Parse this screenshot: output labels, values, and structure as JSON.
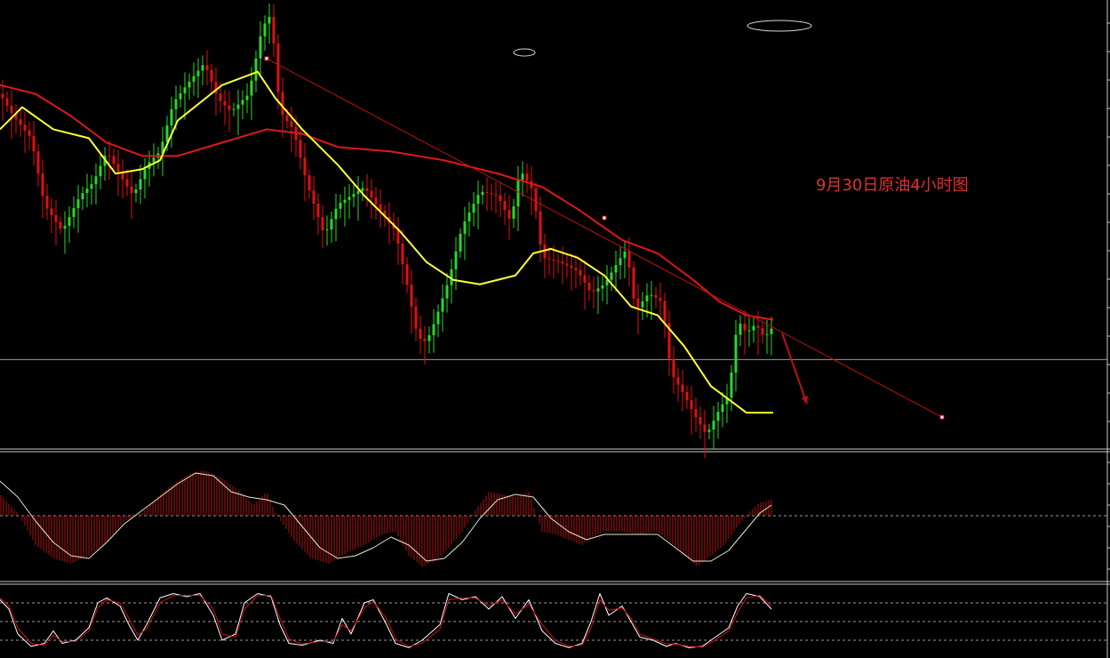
{
  "annotation": "9月30日原油4小时图",
  "colors": {
    "background": "#000000",
    "bull": "#26d926",
    "bear": "#e01010",
    "ma_fast": "#ffff33",
    "ma_slow": "#e01818",
    "trendline": "#c01010",
    "hline": "#9a9a9a",
    "macd_hist": "#b01010",
    "macd_signal": "#e6e6c8",
    "osc_main": "#ffffff",
    "osc_signal": "#d01010",
    "divider": "#c8c8c8",
    "dashed": "#9a9a9a"
  },
  "chart_data": [
    {
      "type": "candlestick",
      "panel": "price",
      "ylim": [
        0,
        100
      ],
      "ma_fast_points": [
        [
          0,
          72
        ],
        [
          25,
          77
        ],
        [
          60,
          72
        ],
        [
          100,
          70
        ],
        [
          130,
          62
        ],
        [
          160,
          63
        ],
        [
          180,
          65
        ],
        [
          200,
          74
        ],
        [
          250,
          82
        ],
        [
          290,
          85
        ],
        [
          310,
          79
        ],
        [
          340,
          72
        ],
        [
          380,
          64
        ],
        [
          410,
          57
        ],
        [
          450,
          49
        ],
        [
          480,
          42
        ],
        [
          510,
          38
        ],
        [
          540,
          37
        ],
        [
          580,
          39
        ],
        [
          600,
          44
        ],
        [
          620,
          45
        ],
        [
          650,
          43
        ],
        [
          680,
          39
        ],
        [
          710,
          32
        ],
        [
          740,
          30
        ],
        [
          770,
          23
        ],
        [
          800,
          14
        ],
        [
          820,
          11
        ],
        [
          840,
          8
        ],
        [
          870,
          8
        ]
      ],
      "ma_slow_points": [
        [
          0,
          82
        ],
        [
          40,
          80
        ],
        [
          80,
          75
        ],
        [
          120,
          69
        ],
        [
          160,
          66
        ],
        [
          200,
          66
        ],
        [
          250,
          69
        ],
        [
          300,
          72
        ],
        [
          340,
          71
        ],
        [
          380,
          68
        ],
        [
          440,
          67
        ],
        [
          500,
          65
        ],
        [
          560,
          62
        ],
        [
          610,
          59
        ],
        [
          650,
          54
        ],
        [
          700,
          47
        ],
        [
          740,
          44
        ],
        [
          780,
          38
        ],
        [
          810,
          33
        ],
        [
          840,
          30
        ],
        [
          870,
          29
        ]
      ],
      "trendline": [
        [
          300,
          88
        ],
        [
          1060,
          7
        ]
      ],
      "trendline_markers": [
        [
          300,
          88
        ],
        [
          680,
          52
        ],
        [
          1060,
          7
        ]
      ],
      "hline_value": 20,
      "arrow": [
        [
          880,
          26
        ],
        [
          908,
          10
        ]
      ],
      "ellipses": [
        {
          "cx": 590,
          "cy": 59,
          "rx": 12,
          "ry": 4
        },
        {
          "cx": 877,
          "cy": 29,
          "rx": 36,
          "ry": 6
        }
      ],
      "price_path": [
        [
          0,
          80
        ],
        [
          15,
          75
        ],
        [
          35,
          70
        ],
        [
          50,
          55
        ],
        [
          70,
          49
        ],
        [
          90,
          57
        ],
        [
          105,
          60
        ],
        [
          120,
          67
        ],
        [
          140,
          60
        ],
        [
          150,
          57
        ],
        [
          165,
          64
        ],
        [
          180,
          67
        ],
        [
          195,
          78
        ],
        [
          210,
          82
        ],
        [
          230,
          87
        ],
        [
          245,
          79
        ],
        [
          260,
          76
        ],
        [
          280,
          80
        ],
        [
          295,
          95
        ],
        [
          305,
          98
        ],
        [
          315,
          76
        ],
        [
          330,
          72
        ],
        [
          345,
          60
        ],
        [
          365,
          48
        ],
        [
          380,
          55
        ],
        [
          395,
          57
        ],
        [
          410,
          59
        ],
        [
          430,
          53
        ],
        [
          445,
          49
        ],
        [
          460,
          35
        ],
        [
          470,
          25
        ],
        [
          480,
          24
        ],
        [
          490,
          29
        ],
        [
          505,
          38
        ],
        [
          520,
          50
        ],
        [
          540,
          58
        ],
        [
          560,
          57
        ],
        [
          575,
          51
        ],
        [
          585,
          63
        ],
        [
          600,
          58
        ],
        [
          610,
          43
        ],
        [
          630,
          42
        ],
        [
          650,
          40
        ],
        [
          665,
          35
        ],
        [
          680,
          37
        ],
        [
          695,
          42
        ],
        [
          705,
          45
        ],
        [
          715,
          31
        ],
        [
          730,
          35
        ],
        [
          745,
          33
        ],
        [
          755,
          17
        ],
        [
          770,
          12
        ],
        [
          780,
          8
        ],
        [
          795,
          3
        ],
        [
          810,
          9
        ],
        [
          820,
          12
        ],
        [
          830,
          29
        ],
        [
          840,
          26
        ],
        [
          850,
          28
        ],
        [
          860,
          25
        ],
        [
          868,
          27
        ]
      ]
    },
    {
      "type": "bar",
      "panel": "macd",
      "ylim": [
        -1,
        1
      ],
      "hist_points": [
        [
          0,
          0.4
        ],
        [
          20,
          0.05
        ],
        [
          40,
          -0.55
        ],
        [
          60,
          -0.8
        ],
        [
          80,
          -0.9
        ],
        [
          100,
          -0.75
        ],
        [
          120,
          -0.5
        ],
        [
          140,
          -0.1
        ],
        [
          160,
          0.05
        ],
        [
          180,
          0.4
        ],
        [
          200,
          0.65
        ],
        [
          215,
          0.8
        ],
        [
          230,
          0.85
        ],
        [
          250,
          0.7
        ],
        [
          270,
          0.45
        ],
        [
          285,
          0.2
        ],
        [
          300,
          0.45
        ],
        [
          310,
          0.05
        ],
        [
          330,
          -0.45
        ],
        [
          350,
          -0.8
        ],
        [
          370,
          -0.9
        ],
        [
          390,
          -0.7
        ],
        [
          410,
          -0.55
        ],
        [
          430,
          -0.35
        ],
        [
          445,
          -0.3
        ],
        [
          460,
          -0.75
        ],
        [
          475,
          -0.95
        ],
        [
          490,
          -0.85
        ],
        [
          505,
          -0.6
        ],
        [
          520,
          -0.3
        ],
        [
          535,
          0.1
        ],
        [
          550,
          0.45
        ],
        [
          565,
          0.4
        ],
        [
          580,
          0.35
        ],
        [
          595,
          0.45
        ],
        [
          610,
          -0.3
        ],
        [
          625,
          -0.35
        ],
        [
          640,
          -0.45
        ],
        [
          655,
          -0.55
        ],
        [
          665,
          -0.4
        ],
        [
          680,
          -0.3
        ],
        [
          700,
          -0.3
        ],
        [
          720,
          -0.35
        ],
        [
          740,
          -0.3
        ],
        [
          755,
          -0.5
        ],
        [
          770,
          -0.75
        ],
        [
          785,
          -0.95
        ],
        [
          800,
          -0.75
        ],
        [
          815,
          -0.55
        ],
        [
          830,
          -0.2
        ],
        [
          845,
          0.1
        ],
        [
          855,
          0.25
        ],
        [
          868,
          0.3
        ]
      ],
      "signal_points": [
        [
          0,
          0.65
        ],
        [
          20,
          0.35
        ],
        [
          40,
          -0.1
        ],
        [
          60,
          -0.5
        ],
        [
          80,
          -0.75
        ],
        [
          100,
          -0.8
        ],
        [
          120,
          -0.5
        ],
        [
          140,
          -0.15
        ],
        [
          160,
          0.1
        ],
        [
          180,
          0.35
        ],
        [
          200,
          0.6
        ],
        [
          220,
          0.8
        ],
        [
          240,
          0.75
        ],
        [
          260,
          0.45
        ],
        [
          280,
          0.35
        ],
        [
          300,
          0.3
        ],
        [
          320,
          0.2
        ],
        [
          340,
          -0.2
        ],
        [
          360,
          -0.6
        ],
        [
          380,
          -0.8
        ],
        [
          400,
          -0.75
        ],
        [
          420,
          -0.6
        ],
        [
          440,
          -0.4
        ],
        [
          460,
          -0.55
        ],
        [
          480,
          -0.85
        ],
        [
          500,
          -0.8
        ],
        [
          520,
          -0.5
        ],
        [
          540,
          -0.05
        ],
        [
          560,
          0.3
        ],
        [
          580,
          0.4
        ],
        [
          600,
          0.35
        ],
        [
          620,
          -0.05
        ],
        [
          640,
          -0.3
        ],
        [
          660,
          -0.45
        ],
        [
          680,
          -0.35
        ],
        [
          700,
          -0.35
        ],
        [
          720,
          -0.35
        ],
        [
          740,
          -0.35
        ],
        [
          760,
          -0.6
        ],
        [
          780,
          -0.85
        ],
        [
          800,
          -0.85
        ],
        [
          820,
          -0.65
        ],
        [
          840,
          -0.25
        ],
        [
          855,
          0.05
        ],
        [
          868,
          0.2
        ]
      ]
    },
    {
      "type": "line",
      "panel": "oscillator",
      "ylim": [
        0,
        100
      ],
      "levels": [
        80,
        50,
        20
      ],
      "main_points": [
        [
          0,
          85
        ],
        [
          10,
          70
        ],
        [
          20,
          30
        ],
        [
          35,
          10
        ],
        [
          50,
          15
        ],
        [
          60,
          35
        ],
        [
          70,
          15
        ],
        [
          85,
          20
        ],
        [
          100,
          40
        ],
        [
          110,
          80
        ],
        [
          120,
          88
        ],
        [
          135,
          75
        ],
        [
          145,
          45
        ],
        [
          155,
          20
        ],
        [
          165,
          45
        ],
        [
          180,
          88
        ],
        [
          195,
          95
        ],
        [
          210,
          90
        ],
        [
          225,
          95
        ],
        [
          240,
          60
        ],
        [
          250,
          20
        ],
        [
          265,
          30
        ],
        [
          275,
          80
        ],
        [
          290,
          95
        ],
        [
          305,
          90
        ],
        [
          315,
          45
        ],
        [
          325,
          15
        ],
        [
          340,
          12
        ],
        [
          360,
          20
        ],
        [
          375,
          15
        ],
        [
          385,
          55
        ],
        [
          395,
          30
        ],
        [
          410,
          80
        ],
        [
          420,
          85
        ],
        [
          435,
          45
        ],
        [
          445,
          15
        ],
        [
          460,
          8
        ],
        [
          475,
          20
        ],
        [
          495,
          45
        ],
        [
          505,
          95
        ],
        [
          520,
          85
        ],
        [
          535,
          90
        ],
        [
          550,
          70
        ],
        [
          565,
          90
        ],
        [
          580,
          55
        ],
        [
          595,
          85
        ],
        [
          610,
          35
        ],
        [
          625,
          15
        ],
        [
          640,
          8
        ],
        [
          655,
          15
        ],
        [
          665,
          50
        ],
        [
          675,
          95
        ],
        [
          685,
          60
        ],
        [
          700,
          75
        ],
        [
          710,
          50
        ],
        [
          720,
          25
        ],
        [
          735,
          20
        ],
        [
          750,
          10
        ],
        [
          760,
          15
        ],
        [
          775,
          8
        ],
        [
          790,
          10
        ],
        [
          805,
          25
        ],
        [
          820,
          40
        ],
        [
          830,
          75
        ],
        [
          840,
          95
        ],
        [
          855,
          90
        ],
        [
          868,
          70
        ]
      ],
      "signal_points": [
        [
          0,
          88
        ],
        [
          10,
          75
        ],
        [
          20,
          40
        ],
        [
          35,
          15
        ],
        [
          50,
          12
        ],
        [
          60,
          28
        ],
        [
          70,
          18
        ],
        [
          85,
          18
        ],
        [
          100,
          35
        ],
        [
          110,
          72
        ],
        [
          120,
          85
        ],
        [
          135,
          80
        ],
        [
          145,
          55
        ],
        [
          155,
          28
        ],
        [
          165,
          38
        ],
        [
          180,
          80
        ],
        [
          195,
          92
        ],
        [
          210,
          92
        ],
        [
          225,
          92
        ],
        [
          240,
          70
        ],
        [
          250,
          30
        ],
        [
          265,
          25
        ],
        [
          275,
          70
        ],
        [
          290,
          92
        ],
        [
          305,
          92
        ],
        [
          315,
          55
        ],
        [
          325,
          22
        ],
        [
          340,
          14
        ],
        [
          360,
          18
        ],
        [
          375,
          18
        ],
        [
          385,
          45
        ],
        [
          395,
          35
        ],
        [
          410,
          72
        ],
        [
          420,
          82
        ],
        [
          435,
          55
        ],
        [
          445,
          22
        ],
        [
          460,
          10
        ],
        [
          475,
          15
        ],
        [
          495,
          38
        ],
        [
          505,
          85
        ],
        [
          520,
          88
        ],
        [
          535,
          88
        ],
        [
          550,
          75
        ],
        [
          565,
          85
        ],
        [
          580,
          62
        ],
        [
          595,
          78
        ],
        [
          610,
          45
        ],
        [
          625,
          20
        ],
        [
          640,
          10
        ],
        [
          655,
          12
        ],
        [
          665,
          40
        ],
        [
          675,
          85
        ],
        [
          685,
          68
        ],
        [
          700,
          72
        ],
        [
          710,
          55
        ],
        [
          720,
          30
        ],
        [
          735,
          22
        ],
        [
          750,
          14
        ],
        [
          760,
          14
        ],
        [
          775,
          10
        ],
        [
          790,
          9
        ],
        [
          805,
          20
        ],
        [
          820,
          35
        ],
        [
          830,
          65
        ],
        [
          840,
          88
        ],
        [
          855,
          92
        ],
        [
          868,
          75
        ]
      ]
    }
  ]
}
